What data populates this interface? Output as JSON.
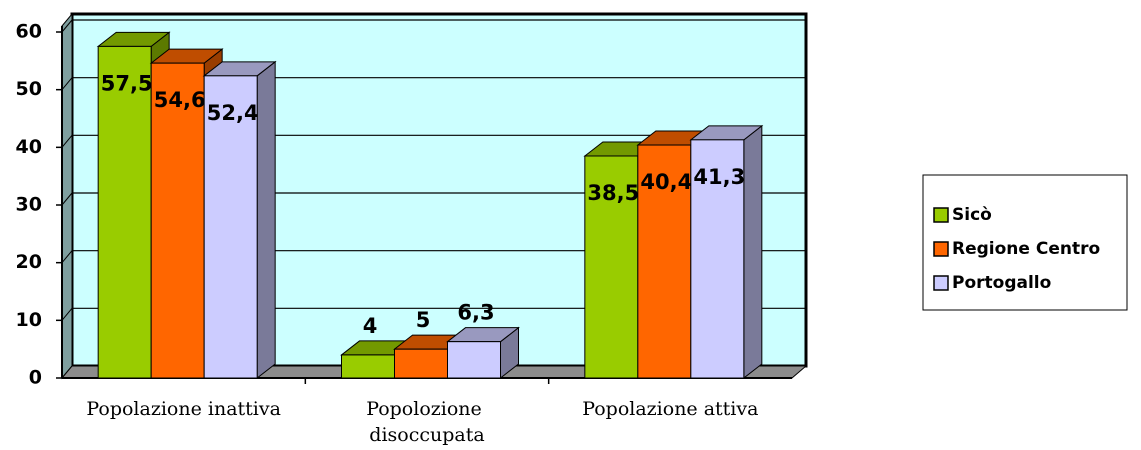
{
  "chart_data": {
    "type": "bar3d",
    "categories": [
      "Popolazione inattiva",
      "Popolozione disoccupata",
      "Popolazione attiva"
    ],
    "series": [
      {
        "name": "Sicò",
        "color": "#99cc00",
        "values": [
          57.5,
          4,
          38.5
        ],
        "value_labels": [
          "57,5",
          "4",
          "38,5"
        ]
      },
      {
        "name": "Regione Centro",
        "color": "#ff6600",
        "values": [
          54.6,
          5,
          40.4
        ],
        "value_labels": [
          "54,6",
          "5",
          "40,4"
        ]
      },
      {
        "name": "Portogallo",
        "color": "#ccccff",
        "values": [
          52.4,
          6.3,
          41.3
        ],
        "value_labels": [
          "52,4",
          "6,3",
          "41,3"
        ]
      }
    ],
    "ylim": [
      0,
      60
    ],
    "yticks": [
      0,
      10,
      20,
      30,
      40,
      50,
      60
    ],
    "grid": true,
    "legend": "right"
  }
}
